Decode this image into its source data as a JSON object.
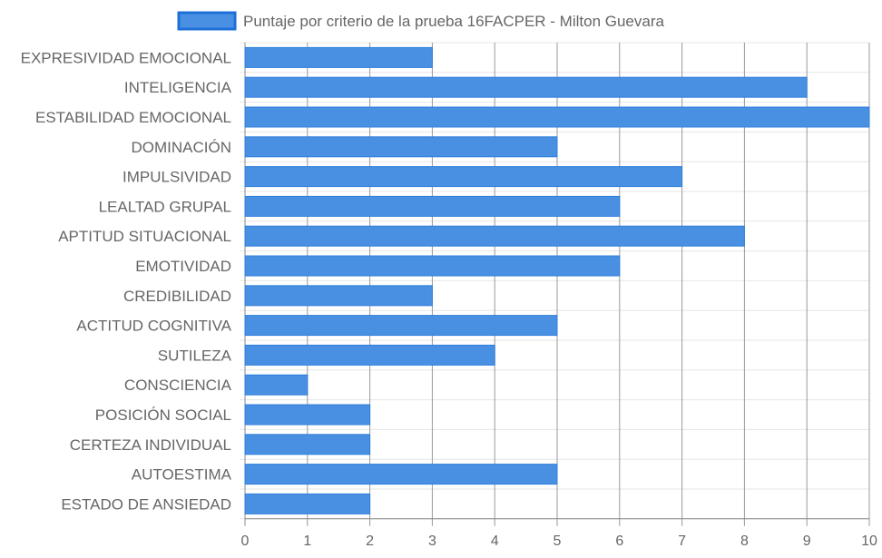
{
  "chart_data": {
    "type": "bar",
    "orientation": "horizontal",
    "categories": [
      "EXPRESIVIDAD EMOCIONAL",
      "INTELIGENCIA",
      "ESTABILIDAD EMOCIONAL",
      "DOMINACIÓN",
      "IMPULSIVIDAD",
      "LEALTAD GRUPAL",
      "APTITUD SITUACIONAL",
      "EMOTIVIDAD",
      "CREDIBILIDAD",
      "ACTITUD COGNITIVA",
      "SUTILEZA",
      "CONSCIENCIA",
      "POSICIÓN SOCIAL",
      "CERTEZA INDIVIDUAL",
      "AUTOESTIMA",
      "ESTADO DE ANSIEDAD"
    ],
    "series": [
      {
        "name": "Puntaje por criterio de la prueba 16FACPER - Milton Guevara",
        "values": [
          3,
          9,
          10,
          5,
          7,
          6,
          8,
          6,
          3,
          5,
          4,
          1,
          2,
          2,
          5,
          2
        ]
      }
    ],
    "xlim": [
      0,
      10
    ],
    "x_ticks": [
      "0",
      "1",
      "2",
      "3",
      "4",
      "5",
      "6",
      "7",
      "8",
      "9",
      "10"
    ],
    "grid": true,
    "legend_position": "top",
    "colors": {
      "bar_fill": "#4a90e2",
      "bar_border": "#2f7fdc",
      "legend_fill": "#4a90e2",
      "legend_border": "#1e6fd9",
      "grid_major": "#9a9a9a",
      "grid_minor": "#e6e6e6",
      "text": "#666666"
    }
  }
}
